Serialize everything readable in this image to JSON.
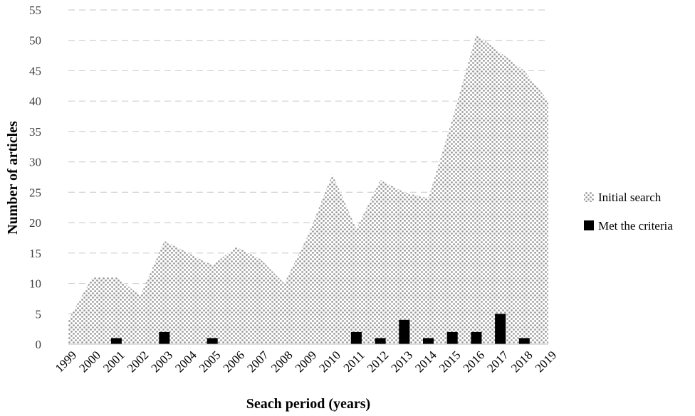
{
  "chart_data": {
    "type": "area",
    "title": "",
    "xlabel": "Seach period (years)",
    "ylabel": "Number of articles",
    "ylim": [
      0,
      55
    ],
    "y_ticks": [
      0,
      5,
      10,
      15,
      20,
      25,
      30,
      35,
      40,
      45,
      50,
      55
    ],
    "grid": "horizontal dashed",
    "legend_position": "right",
    "categories": [
      "1999",
      "2000",
      "2001",
      "2002",
      "2003",
      "2004",
      "2005",
      "2006",
      "2007",
      "2008",
      "2009",
      "2010",
      "2011",
      "2012",
      "2013",
      "2014",
      "2015",
      "2016",
      "2017",
      "2018",
      "2019"
    ],
    "series": [
      {
        "name": "Initial search",
        "type": "area",
        "color": "#a6a6a6",
        "values": [
          4,
          11,
          11,
          8,
          17,
          15,
          13,
          16,
          14,
          10,
          18,
          28,
          19,
          27,
          25,
          24,
          37,
          51,
          48,
          45,
          40
        ]
      },
      {
        "name": "Met the criteria",
        "type": "bar",
        "color": "#000000",
        "values": [
          0,
          0,
          1,
          0,
          2,
          0,
          1,
          0,
          0,
          0,
          0,
          0,
          2,
          1,
          4,
          1,
          2,
          2,
          5,
          1,
          0
        ]
      }
    ]
  }
}
